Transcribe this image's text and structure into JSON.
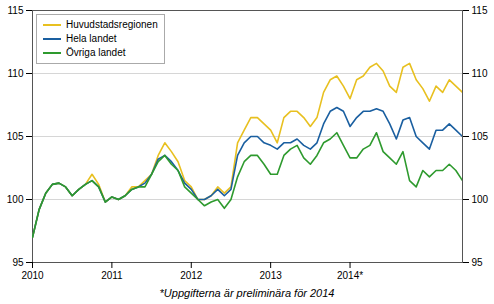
{
  "chart_data": {
    "type": "line",
    "footnote": "*Uppgifterna är preliminära för 2014",
    "categories": [
      "2010",
      null,
      null,
      null,
      null,
      null,
      null,
      null,
      null,
      null,
      null,
      null,
      "2011",
      null,
      null,
      null,
      null,
      null,
      null,
      null,
      null,
      null,
      null,
      null,
      "2012",
      null,
      null,
      null,
      null,
      null,
      null,
      null,
      null,
      null,
      null,
      null,
      "2013",
      null,
      null,
      null,
      null,
      null,
      null,
      null,
      null,
      null,
      null,
      null,
      "2014*",
      null,
      null,
      null,
      null,
      null,
      null,
      null,
      null,
      null,
      null,
      null,
      null,
      null,
      null,
      null,
      null,
      null
    ],
    "series": [
      {
        "name": "Huvudstadsregionen",
        "color": "#e8c020",
        "values": [
          97.0,
          99.2,
          100.5,
          101.2,
          101.3,
          101.0,
          100.3,
          100.8,
          101.2,
          102.0,
          101.2,
          99.8,
          100.2,
          100.0,
          100.3,
          101.0,
          101.0,
          101.5,
          102.0,
          103.5,
          104.5,
          103.8,
          103.0,
          101.5,
          101.0,
          100.0,
          100.0,
          100.3,
          101.0,
          100.5,
          101.0,
          104.5,
          105.5,
          106.5,
          106.5,
          106.0,
          105.5,
          104.5,
          106.5,
          107.0,
          107.0,
          106.5,
          105.8,
          106.5,
          108.5,
          109.5,
          109.8,
          109.0,
          108.0,
          109.5,
          109.8,
          110.5,
          110.8,
          110.2,
          109.0,
          108.5,
          110.5,
          110.8,
          109.5,
          108.8,
          107.8,
          109.0,
          108.5,
          109.5,
          109.0,
          108.5
        ]
      },
      {
        "name": "Hela landet",
        "color": "#1a5fa0",
        "values": [
          97.0,
          99.2,
          100.5,
          101.2,
          101.3,
          101.0,
          100.3,
          100.8,
          101.2,
          101.5,
          101.0,
          99.8,
          100.2,
          100.0,
          100.3,
          100.8,
          101.0,
          101.3,
          102.0,
          103.2,
          103.5,
          103.0,
          102.3,
          101.3,
          100.8,
          100.0,
          100.0,
          100.3,
          100.8,
          100.3,
          100.8,
          103.5,
          104.5,
          105.0,
          105.0,
          104.5,
          104.3,
          104.0,
          104.5,
          104.5,
          104.8,
          104.3,
          104.0,
          104.5,
          106.0,
          107.0,
          107.3,
          107.0,
          105.8,
          106.5,
          107.0,
          107.0,
          107.2,
          107.0,
          106.0,
          104.8,
          106.3,
          106.5,
          105.0,
          104.5,
          104.0,
          105.5,
          105.5,
          106.0,
          105.5,
          105.0
        ]
      },
      {
        "name": "Övriga landet",
        "color": "#2e9a2e",
        "values": [
          97.0,
          99.2,
          100.5,
          101.2,
          101.3,
          101.0,
          100.3,
          100.8,
          101.2,
          101.5,
          101.0,
          99.8,
          100.2,
          100.0,
          100.3,
          100.8,
          101.0,
          101.0,
          102.0,
          103.0,
          103.5,
          102.8,
          102.3,
          101.0,
          100.5,
          100.0,
          99.5,
          99.8,
          100.0,
          99.3,
          100.0,
          101.8,
          103.0,
          103.5,
          103.5,
          102.8,
          102.0,
          102.0,
          103.5,
          104.0,
          104.3,
          103.3,
          102.8,
          103.5,
          104.5,
          104.8,
          105.3,
          104.3,
          103.3,
          103.3,
          104.0,
          104.3,
          105.3,
          103.8,
          103.3,
          102.8,
          103.8,
          101.5,
          101.0,
          102.3,
          101.8,
          102.3,
          102.3,
          102.8,
          102.3,
          101.5
        ]
      }
    ],
    "ylim": [
      95,
      115
    ],
    "yticks": [
      95,
      100,
      105,
      110,
      115
    ],
    "grid": true,
    "legend": "upper left"
  }
}
